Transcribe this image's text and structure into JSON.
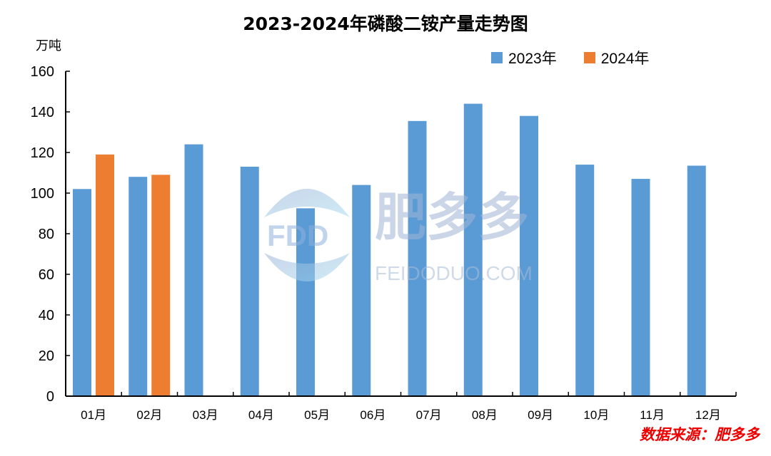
{
  "title": "2023-2024年磷酸二铵产量走势图",
  "unit_label": "万吨",
  "source": "数据来源：肥多多",
  "watermark": {
    "brand_cn": "肥多多",
    "logo_text": "FDD",
    "url_text": "FEIDODUO.COM"
  },
  "legend": [
    {
      "label": "2023年",
      "color": "#5B9BD5"
    },
    {
      "label": "2024年",
      "color": "#ED7D31"
    }
  ],
  "chart_data": {
    "type": "bar",
    "title": "2023-2024年磷酸二铵产量走势图",
    "xlabel": "",
    "ylabel": "万吨",
    "ylim": [
      0,
      160
    ],
    "yticks": [
      0,
      20,
      40,
      60,
      80,
      100,
      120,
      140,
      160
    ],
    "grid": false,
    "legend_position": "top-right",
    "categories": [
      "01月",
      "02月",
      "03月",
      "04月",
      "05月",
      "06月",
      "07月",
      "08月",
      "09月",
      "10月",
      "11月",
      "12月"
    ],
    "series": [
      {
        "name": "2023年",
        "color": "#5B9BD5",
        "values": [
          102,
          108,
          124,
          113,
          92.5,
          104,
          135.5,
          144,
          138,
          114,
          107,
          113.5
        ]
      },
      {
        "name": "2024年",
        "color": "#ED7D31",
        "values": [
          119,
          109,
          null,
          null,
          null,
          null,
          null,
          null,
          null,
          null,
          null,
          null
        ]
      }
    ]
  }
}
